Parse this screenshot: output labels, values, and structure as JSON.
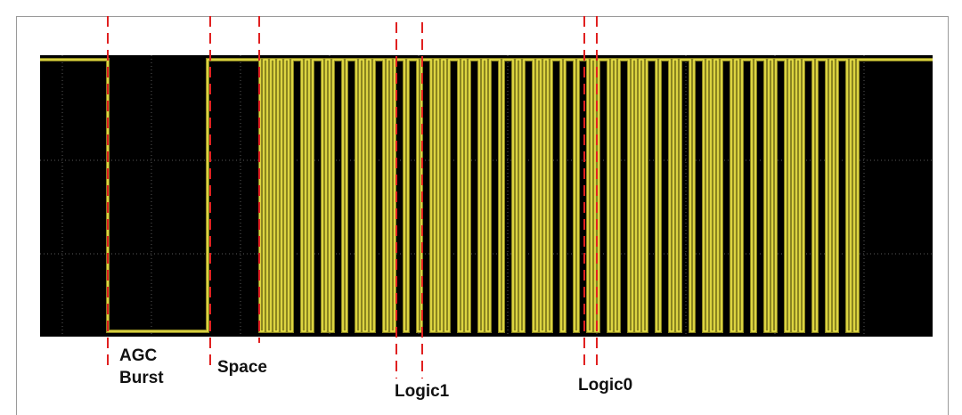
{
  "annotations": {
    "agc_burst": [
      "AGC",
      "Burst"
    ],
    "space": "Space",
    "logic1": "Logic1",
    "logic0": "Logic0"
  }
}
